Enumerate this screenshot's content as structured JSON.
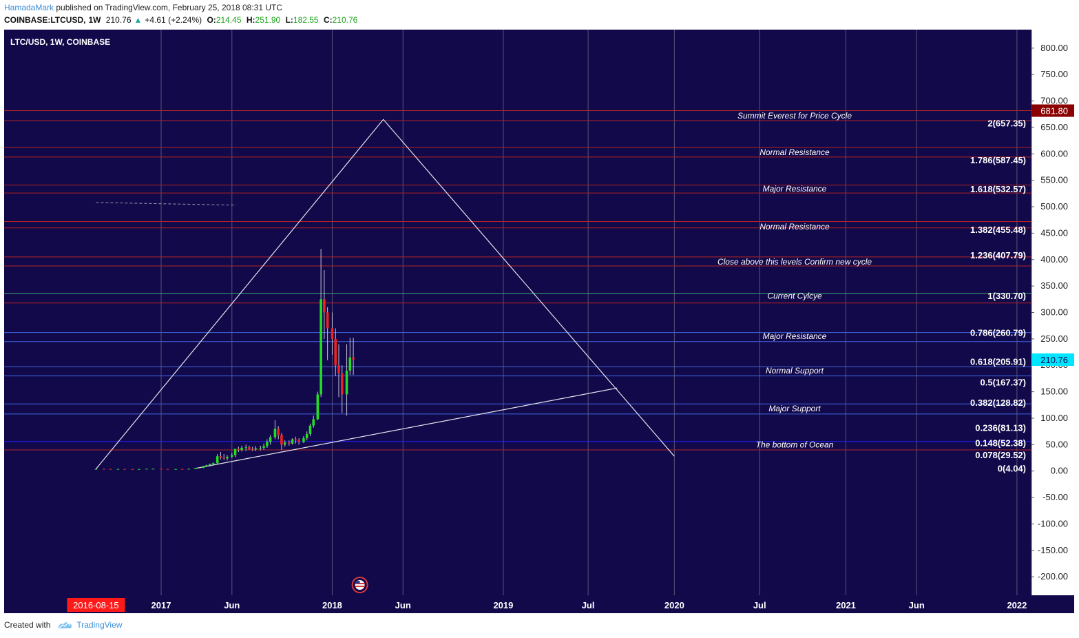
{
  "header": {
    "author": "HamadaMark",
    "published": "published on TradingView.com, February 25, 2018 08:31 UTC",
    "symbol": "COINBASE:LTCUSD,",
    "interval": "1W",
    "last": "210.76",
    "change": "+4.61 (+2.24%)",
    "open_label": "O:",
    "open": "214.45",
    "high_label": "H:",
    "high": "251.90",
    "low_label": "L:",
    "low": "182.55",
    "close_label": "C:",
    "close": "210.76"
  },
  "footer": {
    "created_with": "Created with",
    "brand": "TradingView"
  },
  "chart_data": {
    "type": "candlestick",
    "symbol_title": "LTC/USD, 1W, COINBASE",
    "background": "#12094a",
    "y_ticks": [
      "800.00",
      "750.00",
      "700.00",
      "650.00",
      "600.00",
      "550.00",
      "500.00",
      "450.00",
      "400.00",
      "350.00",
      "300.00",
      "250.00",
      "200.00",
      "150.00",
      "100.00",
      "50.00",
      "0.00",
      "-50.00",
      "-100.00",
      "-150.00",
      "-200.00"
    ],
    "y_tick_values": [
      800,
      750,
      700,
      650,
      600,
      550,
      500,
      450,
      400,
      350,
      300,
      250,
      200,
      150,
      100,
      50,
      0,
      -50,
      -100,
      -150,
      -200
    ],
    "ylim": [
      -235,
      835
    ],
    "x_ticks": [
      "2016-08-15",
      "2017",
      "Jun",
      "2018",
      "Jun",
      "2019",
      "Jul",
      "2020",
      "Jul",
      "2021",
      "Jun",
      "2022"
    ],
    "x_tick_dates": [
      "2016-08-15",
      "2017-01-01",
      "2017-06-01",
      "2018-01-01",
      "2018-06-01",
      "2019-01-01",
      "2019-07-01",
      "2020-01-01",
      "2020-07-01",
      "2021-01-01",
      "2021-06-01",
      "2022-01-01"
    ],
    "x_range": [
      "2016-02-01",
      "2022-02-01"
    ],
    "highlighted_x_tick": "2016-08-15",
    "price_badges": [
      {
        "label": "681.80",
        "value": 681.8,
        "color": "#8b0000"
      },
      {
        "label": "210.76",
        "value": 210.76,
        "color": "#00e5ff"
      }
    ],
    "fib_levels": [
      {
        "label": "2(657.35)",
        "value": 657.35
      },
      {
        "label": "1.786(587.45)",
        "value": 587.45
      },
      {
        "label": "1.618(532.57)",
        "value": 532.57
      },
      {
        "label": "1.382(455.48)",
        "value": 455.48
      },
      {
        "label": "1.236(407.79)",
        "value": 407.79
      },
      {
        "label": "1(330.70)",
        "value": 330.7
      },
      {
        "label": "0.786(260.79)",
        "value": 260.79
      },
      {
        "label": "0.618(205.91)",
        "value": 205.91
      },
      {
        "label": "0.5(167.37)",
        "value": 167.37
      },
      {
        "label": "0.382(128.82)",
        "value": 128.82
      },
      {
        "label": "0.236(81.13)",
        "value": 81.13
      },
      {
        "label": "0.148(52.38)",
        "value": 52.38
      },
      {
        "label": "0.078(29.52)",
        "value": 29.52
      },
      {
        "label": "0(4.04)",
        "value": 4.04
      }
    ],
    "zone_lines": [
      {
        "value": 681.8,
        "color": "#b22222"
      },
      {
        "value": 663,
        "color": "#b22222"
      },
      {
        "value": 612,
        "color": "#b22222"
      },
      {
        "value": 594,
        "color": "#b22222"
      },
      {
        "value": 541,
        "color": "#b22222"
      },
      {
        "value": 526,
        "color": "#b22222"
      },
      {
        "value": 472,
        "color": "#b22222"
      },
      {
        "value": 460,
        "color": "#b22222"
      },
      {
        "value": 405,
        "color": "#b22222"
      },
      {
        "value": 388,
        "color": "#b22222"
      },
      {
        "value": 336,
        "color": "#3cb371"
      },
      {
        "value": 318,
        "color": "#b22222"
      },
      {
        "value": 262,
        "color": "#4169e1"
      },
      {
        "value": 245,
        "color": "#4169e1"
      },
      {
        "value": 197,
        "color": "#4169e1"
      },
      {
        "value": 180,
        "color": "#4169e1"
      },
      {
        "value": 127,
        "color": "#4169e1"
      },
      {
        "value": 108,
        "color": "#4169e1"
      },
      {
        "value": 56,
        "color": "#2020ff"
      },
      {
        "value": 40,
        "color": "#b22222"
      }
    ],
    "annotations": [
      {
        "text": "Summit Everest for Price Cycle",
        "value": 672
      },
      {
        "text": "Normal Resistance",
        "value": 603
      },
      {
        "text": "Major Resistance",
        "value": 534
      },
      {
        "text": "Normal Resistance",
        "value": 462
      },
      {
        "text": "Close above this levels Confirm new cycle",
        "value": 396
      },
      {
        "text": "Current Cylcye",
        "value": 331
      },
      {
        "text": "Major Resistance",
        "value": 255
      },
      {
        "text": "Normal Support",
        "value": 190
      },
      {
        "text": "Major Support",
        "value": 118
      },
      {
        "text": "The bottom of Ocean",
        "value": 50
      }
    ],
    "candles": [
      {
        "d": "2016-08-15",
        "o": 4,
        "h": 5,
        "l": 3.5,
        "c": 4
      },
      {
        "d": "2016-09-01",
        "o": 4,
        "h": 4.5,
        "l": 3.6,
        "c": 3.9
      },
      {
        "d": "2016-09-15",
        "o": 3.9,
        "h": 4.2,
        "l": 3.6,
        "c": 3.8
      },
      {
        "d": "2016-10-01",
        "o": 3.8,
        "h": 4.1,
        "l": 3.6,
        "c": 3.9
      },
      {
        "d": "2016-10-15",
        "o": 3.9,
        "h": 4.2,
        "l": 3.7,
        "c": 3.8
      },
      {
        "d": "2016-11-01",
        "o": 3.8,
        "h": 4,
        "l": 3.5,
        "c": 3.7
      },
      {
        "d": "2016-11-15",
        "o": 3.7,
        "h": 4,
        "l": 3.5,
        "c": 3.8
      },
      {
        "d": "2016-12-01",
        "o": 3.8,
        "h": 4.2,
        "l": 3.6,
        "c": 4.3
      },
      {
        "d": "2016-12-15",
        "o": 4.3,
        "h": 4.6,
        "l": 4,
        "c": 4.4
      },
      {
        "d": "2017-01-01",
        "o": 4.4,
        "h": 4.6,
        "l": 3.8,
        "c": 3.9
      },
      {
        "d": "2017-01-15",
        "o": 3.9,
        "h": 4.1,
        "l": 3.7,
        "c": 3.8
      },
      {
        "d": "2017-02-01",
        "o": 3.8,
        "h": 4,
        "l": 3.6,
        "c": 3.9
      },
      {
        "d": "2017-02-15",
        "o": 3.9,
        "h": 4.1,
        "l": 3.7,
        "c": 3.8
      },
      {
        "d": "2017-03-01",
        "o": 3.8,
        "h": 4.5,
        "l": 3.7,
        "c": 4.2
      },
      {
        "d": "2017-03-15",
        "o": 4.2,
        "h": 5,
        "l": 4,
        "c": 6
      },
      {
        "d": "2017-04-01",
        "o": 6,
        "h": 10,
        "l": 5.5,
        "c": 9
      },
      {
        "d": "2017-04-08",
        "o": 9,
        "h": 12,
        "l": 8,
        "c": 11
      },
      {
        "d": "2017-04-15",
        "o": 11,
        "h": 14,
        "l": 9,
        "c": 13
      },
      {
        "d": "2017-04-22",
        "o": 13,
        "h": 16,
        "l": 12,
        "c": 15
      },
      {
        "d": "2017-05-01",
        "o": 15,
        "h": 32,
        "l": 14,
        "c": 28
      },
      {
        "d": "2017-05-08",
        "o": 28,
        "h": 36,
        "l": 22,
        "c": 25
      },
      {
        "d": "2017-05-15",
        "o": 25,
        "h": 32,
        "l": 21,
        "c": 24
      },
      {
        "d": "2017-05-22",
        "o": 24,
        "h": 30,
        "l": 20,
        "c": 27
      },
      {
        "d": "2017-06-01",
        "o": 27,
        "h": 34,
        "l": 25,
        "c": 30
      },
      {
        "d": "2017-06-08",
        "o": 30,
        "h": 35,
        "l": 26,
        "c": 42
      },
      {
        "d": "2017-06-15",
        "o": 42,
        "h": 46,
        "l": 36,
        "c": 40
      },
      {
        "d": "2017-06-22",
        "o": 40,
        "h": 48,
        "l": 37,
        "c": 44
      },
      {
        "d": "2017-07-01",
        "o": 44,
        "h": 50,
        "l": 38,
        "c": 45
      },
      {
        "d": "2017-07-08",
        "o": 45,
        "h": 48,
        "l": 40,
        "c": 42
      },
      {
        "d": "2017-07-15",
        "o": 42,
        "h": 46,
        "l": 38,
        "c": 41
      },
      {
        "d": "2017-07-22",
        "o": 41,
        "h": 47,
        "l": 38,
        "c": 43
      },
      {
        "d": "2017-08-01",
        "o": 43,
        "h": 48,
        "l": 39,
        "c": 44
      },
      {
        "d": "2017-08-08",
        "o": 44,
        "h": 52,
        "l": 40,
        "c": 47
      },
      {
        "d": "2017-08-15",
        "o": 47,
        "h": 60,
        "l": 44,
        "c": 55
      },
      {
        "d": "2017-08-22",
        "o": 55,
        "h": 68,
        "l": 50,
        "c": 64
      },
      {
        "d": "2017-09-01",
        "o": 64,
        "h": 96,
        "l": 60,
        "c": 80
      },
      {
        "d": "2017-09-08",
        "o": 80,
        "h": 85,
        "l": 60,
        "c": 68
      },
      {
        "d": "2017-09-15",
        "o": 68,
        "h": 72,
        "l": 40,
        "c": 50
      },
      {
        "d": "2017-09-22",
        "o": 50,
        "h": 58,
        "l": 46,
        "c": 54
      },
      {
        "d": "2017-10-01",
        "o": 54,
        "h": 58,
        "l": 48,
        "c": 52
      },
      {
        "d": "2017-10-08",
        "o": 52,
        "h": 62,
        "l": 50,
        "c": 60
      },
      {
        "d": "2017-10-15",
        "o": 60,
        "h": 65,
        "l": 52,
        "c": 58
      },
      {
        "d": "2017-10-22",
        "o": 58,
        "h": 62,
        "l": 50,
        "c": 55
      },
      {
        "d": "2017-11-01",
        "o": 55,
        "h": 66,
        "l": 53,
        "c": 62
      },
      {
        "d": "2017-11-08",
        "o": 62,
        "h": 75,
        "l": 58,
        "c": 70
      },
      {
        "d": "2017-11-15",
        "o": 70,
        "h": 90,
        "l": 66,
        "c": 86
      },
      {
        "d": "2017-11-22",
        "o": 86,
        "h": 105,
        "l": 82,
        "c": 98
      },
      {
        "d": "2017-12-01",
        "o": 98,
        "h": 150,
        "l": 96,
        "c": 145
      },
      {
        "d": "2017-12-08",
        "o": 145,
        "h": 420,
        "l": 140,
        "c": 325
      },
      {
        "d": "2017-12-15",
        "o": 325,
        "h": 380,
        "l": 250,
        "c": 300
      },
      {
        "d": "2017-12-22",
        "o": 300,
        "h": 310,
        "l": 210,
        "c": 270
      },
      {
        "d": "2018-01-01",
        "o": 270,
        "h": 300,
        "l": 220,
        "c": 250
      },
      {
        "d": "2018-01-08",
        "o": 250,
        "h": 270,
        "l": 180,
        "c": 200
      },
      {
        "d": "2018-01-15",
        "o": 200,
        "h": 240,
        "l": 140,
        "c": 185
      },
      {
        "d": "2018-01-22",
        "o": 185,
        "h": 200,
        "l": 110,
        "c": 145
      },
      {
        "d": "2018-02-01",
        "o": 145,
        "h": 240,
        "l": 105,
        "c": 190
      },
      {
        "d": "2018-02-08",
        "o": 190,
        "h": 252,
        "l": 182,
        "c": 215
      },
      {
        "d": "2018-02-15",
        "o": 215,
        "h": 252,
        "l": 182,
        "c": 211
      }
    ],
    "drawings": {
      "triangle": [
        {
          "d": "2016-08-15",
          "v": 4
        },
        {
          "d": "2018-04-20",
          "v": 665
        },
        {
          "d": "2020-01-01",
          "v": 28
        }
      ],
      "trendline": [
        {
          "d": "2017-03-15",
          "v": 5
        },
        {
          "d": "2019-09-01",
          "v": 157
        }
      ],
      "dashed": [
        {
          "d": "2016-08-15",
          "v": 508
        },
        {
          "d": "2017-06-10",
          "v": 503
        }
      ]
    },
    "event_icon": "us-flag-event-icon"
  }
}
